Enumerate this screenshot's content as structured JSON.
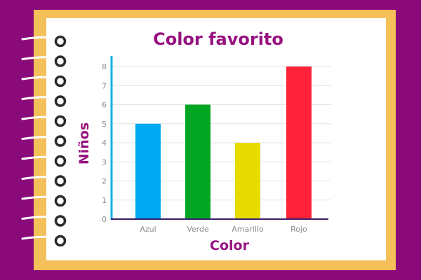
{
  "chart_data": {
    "type": "bar",
    "title": "Color favorito",
    "xlabel": "Color",
    "ylabel": "Niños",
    "categories": [
      "Azul",
      "Verde",
      "Amarillo",
      "Rojo"
    ],
    "values": [
      5,
      6,
      4,
      8
    ],
    "bar_colors": [
      "#00a9f4",
      "#00a521",
      "#e6dc00",
      "#ff2238"
    ],
    "ylim": [
      0,
      8
    ],
    "yticks": [
      0,
      1,
      2,
      3,
      4,
      5,
      6,
      7,
      8
    ],
    "grid": true,
    "legend": "none"
  },
  "colors": {
    "background": "#8b0a7a",
    "frame": "#f4c05a",
    "accent": "#96127f",
    "y_axis": "#17aee6",
    "x_axis": "#3a1e6a"
  },
  "icons": [
    "spiral-binding-ring-icon"
  ]
}
